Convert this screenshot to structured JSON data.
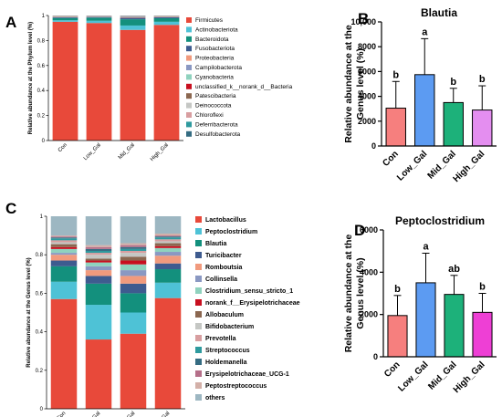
{
  "panels": {
    "a": "A",
    "b": "B",
    "c": "C",
    "d": "D"
  },
  "colors": {
    "phylum": [
      "#e8493a",
      "#4ec2d6",
      "#13907d",
      "#3e5b8f",
      "#f19a7d",
      "#8a98c2",
      "#8fd2be",
      "#c80f1f",
      "#8b6750",
      "#c5c7c4",
      "#d89ea0",
      "#2e9a9e",
      "#356c82"
    ],
    "genus": [
      "#e8493a",
      "#4ec2d6",
      "#13907d",
      "#3e5b8f",
      "#f19a7d",
      "#8a98c2",
      "#8fd2be",
      "#c80f1f",
      "#8b6750",
      "#c5c7c4",
      "#d89ea0",
      "#2e9a9e",
      "#356c82",
      "#b56f89",
      "#d3b0a8",
      "#9db7c2"
    ],
    "groups": [
      "#f67f7e",
      "#5c9bf2",
      "#1db17a",
      "#e48ef0"
    ],
    "groups_d": [
      "#f67f7e",
      "#5c9bf2",
      "#1db17a",
      "#ee3fd5"
    ]
  },
  "chart_data": [
    {
      "panel": "A",
      "type": "bar",
      "stacked": true,
      "ylabel": "Relative abundance at the Phylum level (%)",
      "ylim": [
        0,
        1
      ],
      "yticks": [
        "0",
        "0.2",
        "0.4",
        "0.6",
        "0.8",
        "1"
      ],
      "categories": [
        "Con",
        "Low_Gal",
        "Mid_Gal",
        "High_Gal"
      ],
      "series": [
        {
          "name": "Firmicutes",
          "values": [
            0.95,
            0.94,
            0.885,
            0.925
          ]
        },
        {
          "name": "Actinobacteriota",
          "values": [
            0.012,
            0.018,
            0.035,
            0.025
          ]
        },
        {
          "name": "Bacteroidota",
          "values": [
            0.018,
            0.025,
            0.05,
            0.028
          ]
        },
        {
          "name": "Fusobacteriota",
          "values": [
            0.006,
            0.005,
            0.012,
            0.008
          ]
        },
        {
          "name": "Proteobacteria",
          "values": [
            0.004,
            0.003,
            0.005,
            0.004
          ]
        },
        {
          "name": "Campilobacterota",
          "values": [
            0.002,
            0.002,
            0.003,
            0.002
          ]
        },
        {
          "name": "Cyanobacteria",
          "values": [
            0.002,
            0.001,
            0.002,
            0.002
          ]
        },
        {
          "name": "unclassified_k__norank_d__Bacteria",
          "values": [
            0.001,
            0.001,
            0.002,
            0.001
          ]
        },
        {
          "name": "Patescibacteria",
          "values": [
            0.001,
            0.001,
            0.001,
            0.001
          ]
        },
        {
          "name": "Deinococcota",
          "values": [
            0.001,
            0.001,
            0.001,
            0.001
          ]
        },
        {
          "name": "Chloroflexi",
          "values": [
            0.001,
            0.001,
            0.001,
            0.001
          ]
        },
        {
          "name": "Deferribacterota",
          "values": [
            0.001,
            0.001,
            0.002,
            0.001
          ]
        },
        {
          "name": "Desulfobacterota",
          "values": [
            0.001,
            0.001,
            0.001,
            0.001
          ]
        }
      ]
    },
    {
      "panel": "B",
      "type": "bar",
      "title": "Blautia",
      "ylabel": "Relative abundance at the Genus level (%)",
      "ylim": [
        0,
        10000
      ],
      "yticks": [
        "0",
        "2000",
        "4000",
        "6000",
        "8000",
        "10,000"
      ],
      "categories": [
        "Con",
        "Low_Gal",
        "Mid_Gal",
        "High_Gal"
      ],
      "values": [
        3050,
        5750,
        3500,
        2900
      ],
      "errors": [
        2150,
        2900,
        1150,
        1950
      ],
      "labels": [
        "b",
        "a",
        "b",
        "b"
      ]
    },
    {
      "panel": "C",
      "type": "bar",
      "stacked": true,
      "ylabel": "Relative abundance at the Genus level (%)",
      "ylim": [
        0,
        1
      ],
      "yticks": [
        "0",
        "0.2",
        "0.4",
        "0.6",
        "0.8",
        "1"
      ],
      "categories": [
        "Con",
        "Low_Gal",
        "Mid_Gal",
        "High_Gal"
      ],
      "series": [
        {
          "name": "Lactobacillus",
          "values": [
            0.57,
            0.36,
            0.39,
            0.575
          ]
        },
        {
          "name": "Peptoclostridium",
          "values": [
            0.09,
            0.18,
            0.11,
            0.08
          ]
        },
        {
          "name": "Blautia",
          "values": [
            0.08,
            0.11,
            0.1,
            0.07
          ]
        },
        {
          "name": "Turicibacter",
          "values": [
            0.03,
            0.04,
            0.05,
            0.03
          ]
        },
        {
          "name": "Romboutsia",
          "values": [
            0.03,
            0.03,
            0.04,
            0.04
          ]
        },
        {
          "name": "Collinsella",
          "values": [
            0.01,
            0.02,
            0.03,
            0.02
          ]
        },
        {
          "name": "Clostridium_sensu_stricto_1",
          "values": [
            0.02,
            0.02,
            0.03,
            0.02
          ]
        },
        {
          "name": "norank_f__Erysipelotrichaceae",
          "values": [
            0.01,
            0.01,
            0.02,
            0.01
          ]
        },
        {
          "name": "Allobaculum",
          "values": [
            0.015,
            0.01,
            0.02,
            0.015
          ]
        },
        {
          "name": "Bifidobacterium",
          "values": [
            0.01,
            0.02,
            0.02,
            0.01
          ]
        },
        {
          "name": "Prevotella",
          "values": [
            0.01,
            0.01,
            0.01,
            0.01
          ]
        },
        {
          "name": "Streptococcus",
          "values": [
            0.01,
            0.01,
            0.01,
            0.01
          ]
        },
        {
          "name": "Holdemanella",
          "values": [
            0.005,
            0.01,
            0.01,
            0.005
          ]
        },
        {
          "name": "Erysipelotrichaceae_UCG-1",
          "values": [
            0.005,
            0.01,
            0.01,
            0.005
          ]
        },
        {
          "name": "Peptostreptococcus",
          "values": [
            0.005,
            0.01,
            0.01,
            0.01
          ]
        },
        {
          "name": "others",
          "values": [
            0.1,
            0.15,
            0.14,
            0.09
          ]
        }
      ]
    },
    {
      "panel": "D",
      "type": "bar",
      "title": "Peptoclostridium",
      "ylabel": "Relative abundance at the Genus level (%)",
      "ylim": [
        0,
        6000
      ],
      "yticks": [
        "0",
        "2000",
        "4000",
        "6000"
      ],
      "categories": [
        "Con",
        "Low_Gal",
        "Mid_Gal",
        "High_Gal"
      ],
      "values": [
        1950,
        3500,
        2950,
        2100
      ],
      "errors": [
        950,
        1400,
        900,
        900
      ],
      "labels": [
        "b",
        "a",
        "ab",
        "b"
      ]
    }
  ]
}
